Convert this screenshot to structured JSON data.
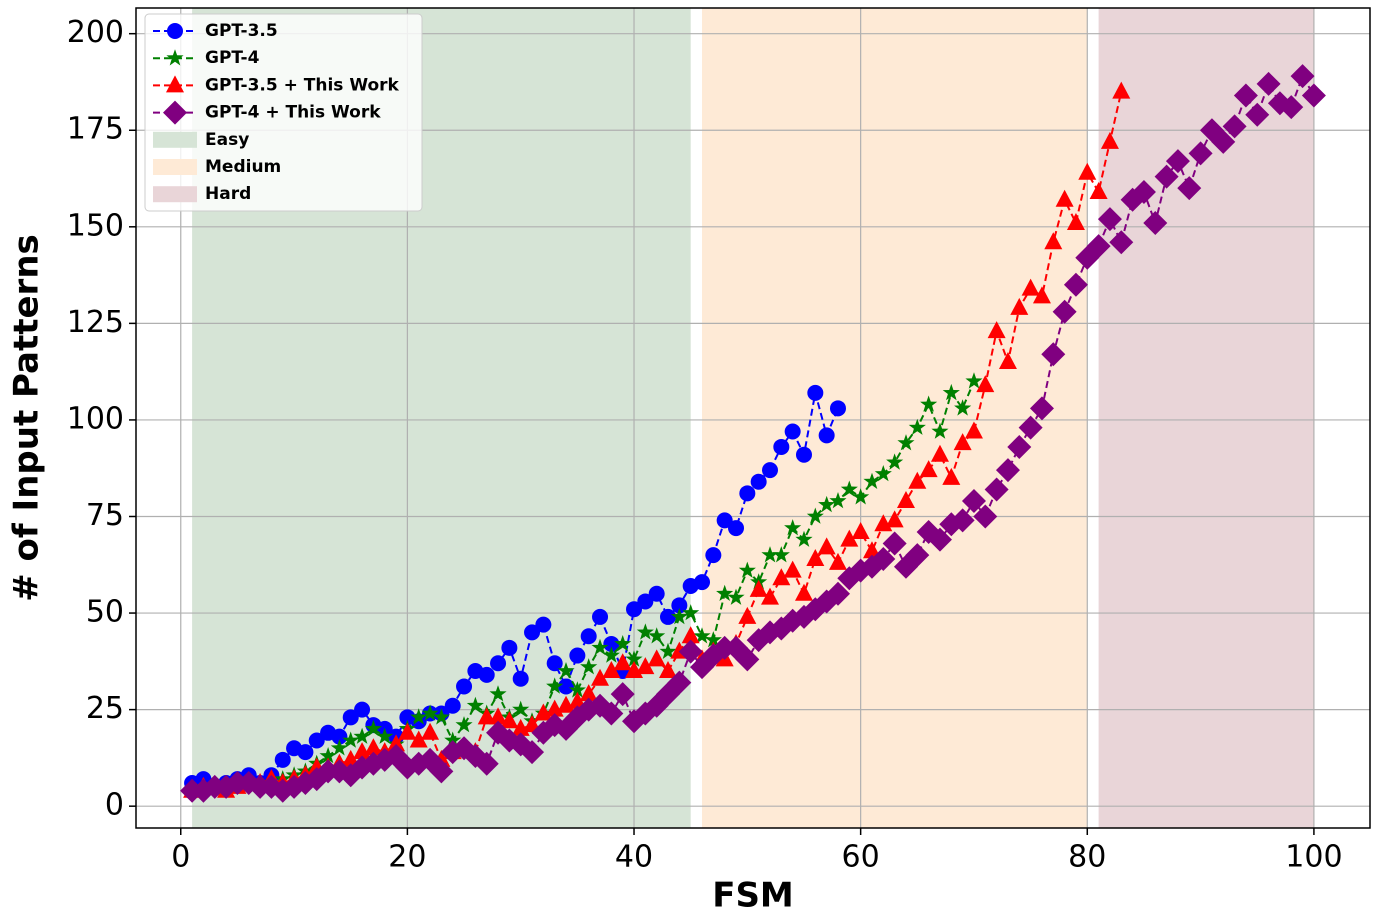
{
  "chart_data": {
    "type": "line",
    "xlabel": "FSM",
    "ylabel": "# of Input Patterns",
    "xlim": [
      -3.95,
      104.95
    ],
    "ylim": [
      -5.65,
      206.65
    ],
    "xticks": [
      0,
      20,
      40,
      60,
      80,
      100
    ],
    "yticks": [
      0,
      25,
      50,
      75,
      100,
      125,
      150,
      175,
      200
    ],
    "grid": true,
    "legend": "upper left",
    "spans": [
      {
        "name": "Easy",
        "color": "#d6e4d6",
        "start": 1,
        "end": 45
      },
      {
        "name": "Medium",
        "color": "#feead6",
        "start": 46,
        "end": 80
      },
      {
        "name": "Hard",
        "color": "#e9d5d8",
        "start": 81,
        "end": 100
      }
    ],
    "series": [
      {
        "name": "GPT-3.5",
        "color": "#0000ff",
        "marker": "circle",
        "x": [
          1,
          2,
          3,
          4,
          5,
          6,
          7,
          8,
          9,
          10,
          11,
          12,
          13,
          14,
          15,
          16,
          17,
          18,
          19,
          20,
          21,
          22,
          23,
          24,
          25,
          26,
          27,
          28,
          29,
          30,
          31,
          32,
          33,
          34,
          35,
          36,
          37,
          38,
          39,
          40,
          41,
          42,
          43,
          44,
          45,
          46,
          47,
          48,
          49,
          50,
          51,
          52,
          53,
          54,
          55,
          56,
          57,
          58
        ],
        "values": [
          6,
          7,
          5,
          6,
          7,
          8,
          6,
          8,
          12,
          15,
          14,
          17,
          19,
          18,
          23,
          25,
          21,
          20,
          18,
          23,
          22,
          24,
          24,
          26,
          31,
          35,
          34,
          37,
          41,
          33,
          45,
          47,
          37,
          31,
          39,
          44,
          49,
          42,
          35,
          51,
          53,
          55,
          49,
          52,
          57,
          58,
          65,
          74,
          72,
          81,
          84,
          87,
          93,
          97,
          91,
          107,
          96,
          103
        ]
      },
      {
        "name": "GPT-4",
        "color": "#008000",
        "marker": "star",
        "x": [
          1,
          2,
          3,
          4,
          5,
          6,
          7,
          8,
          9,
          10,
          11,
          12,
          13,
          14,
          15,
          16,
          17,
          18,
          19,
          20,
          21,
          22,
          23,
          24,
          25,
          26,
          27,
          28,
          29,
          30,
          31,
          32,
          33,
          34,
          35,
          36,
          37,
          38,
          39,
          40,
          41,
          42,
          43,
          44,
          45,
          46,
          47,
          48,
          49,
          50,
          51,
          52,
          53,
          54,
          55,
          56,
          57,
          58,
          59,
          60,
          61,
          62,
          63,
          64,
          65,
          66,
          67,
          68,
          69,
          70
        ],
        "values": [
          4,
          5,
          5,
          5,
          6,
          6,
          6,
          6,
          7,
          8,
          9,
          11,
          13,
          15,
          17,
          18,
          20,
          18,
          16,
          20,
          23,
          24,
          23,
          17,
          21,
          26,
          24,
          29,
          23,
          25,
          22,
          24,
          31,
          35,
          30,
          36,
          41,
          39,
          42,
          38,
          45,
          44,
          40,
          49,
          50,
          44,
          43,
          55,
          54,
          61,
          58,
          65,
          65,
          72,
          69,
          75,
          78,
          79,
          82,
          80,
          84,
          86,
          89,
          94,
          98,
          104,
          97,
          107,
          103,
          110
        ]
      },
      {
        "name": "GPT-3.5 + This Work",
        "color": "#ff0000",
        "marker": "triangle",
        "x": [
          1,
          2,
          3,
          4,
          5,
          6,
          7,
          8,
          9,
          10,
          11,
          12,
          13,
          14,
          15,
          16,
          17,
          18,
          19,
          20,
          21,
          22,
          23,
          24,
          25,
          26,
          27,
          28,
          29,
          30,
          31,
          32,
          33,
          34,
          35,
          36,
          37,
          38,
          39,
          40,
          41,
          42,
          43,
          44,
          45,
          46,
          47,
          48,
          49,
          50,
          51,
          52,
          53,
          54,
          55,
          56,
          57,
          58,
          59,
          60,
          61,
          62,
          63,
          64,
          65,
          66,
          67,
          68,
          69,
          70,
          71,
          72,
          73,
          74,
          75,
          76,
          77,
          78,
          79,
          80,
          81,
          82,
          83
        ],
        "values": [
          4,
          5,
          5,
          4,
          5,
          6,
          6,
          7,
          6,
          7,
          8,
          10,
          10,
          11,
          12,
          14,
          15,
          14,
          16,
          19,
          17,
          19,
          12,
          14,
          15,
          14,
          23,
          23,
          22,
          20,
          21,
          24,
          25,
          26,
          27,
          29,
          33,
          35,
          37,
          35,
          36,
          38,
          35,
          40,
          44,
          38,
          40,
          38,
          42,
          49,
          56,
          54,
          59,
          61,
          55,
          64,
          67,
          63,
          69,
          71,
          66,
          73,
          74,
          79,
          84,
          87,
          91,
          85,
          94,
          97,
          109,
          123,
          115,
          129,
          134,
          132,
          146,
          157,
          151,
          164,
          159,
          172,
          185
        ]
      },
      {
        "name": "GPT-4 + This Work",
        "color": "#800080",
        "marker": "diamond",
        "x": [
          1,
          2,
          3,
          4,
          5,
          6,
          7,
          8,
          9,
          10,
          11,
          12,
          13,
          14,
          15,
          16,
          17,
          18,
          19,
          20,
          21,
          22,
          23,
          24,
          25,
          26,
          27,
          28,
          29,
          30,
          31,
          32,
          33,
          34,
          35,
          36,
          37,
          38,
          39,
          40,
          41,
          42,
          43,
          44,
          45,
          46,
          47,
          48,
          49,
          50,
          51,
          52,
          53,
          54,
          55,
          56,
          57,
          58,
          59,
          60,
          61,
          62,
          63,
          64,
          65,
          66,
          67,
          68,
          69,
          70,
          71,
          72,
          73,
          74,
          75,
          76,
          77,
          78,
          79,
          80,
          81,
          82,
          83,
          84,
          85,
          86,
          87,
          88,
          89,
          90,
          91,
          92,
          93,
          94,
          95,
          96,
          97,
          98,
          99,
          100
        ],
        "values": [
          4,
          4,
          5,
          5,
          6,
          6,
          5,
          5,
          4,
          5,
          6,
          7,
          9,
          9,
          8,
          10,
          11,
          12,
          13,
          10,
          11,
          12,
          9,
          14,
          15,
          13,
          11,
          19,
          17,
          16,
          14,
          19,
          21,
          20,
          23,
          25,
          26,
          24,
          29,
          22,
          24,
          26,
          29,
          32,
          40,
          36,
          39,
          41,
          41,
          38,
          43,
          45,
          46,
          48,
          49,
          51,
          53,
          55,
          59,
          61,
          62,
          64,
          68,
          62,
          65,
          71,
          69,
          73,
          74,
          79,
          75,
          82,
          87,
          93,
          98,
          103,
          117,
          128,
          135,
          142,
          145,
          152,
          146,
          157,
          159,
          151,
          163,
          167,
          160,
          169,
          175,
          172,
          176,
          184,
          179,
          187,
          182,
          181,
          189,
          184
        ]
      }
    ]
  }
}
